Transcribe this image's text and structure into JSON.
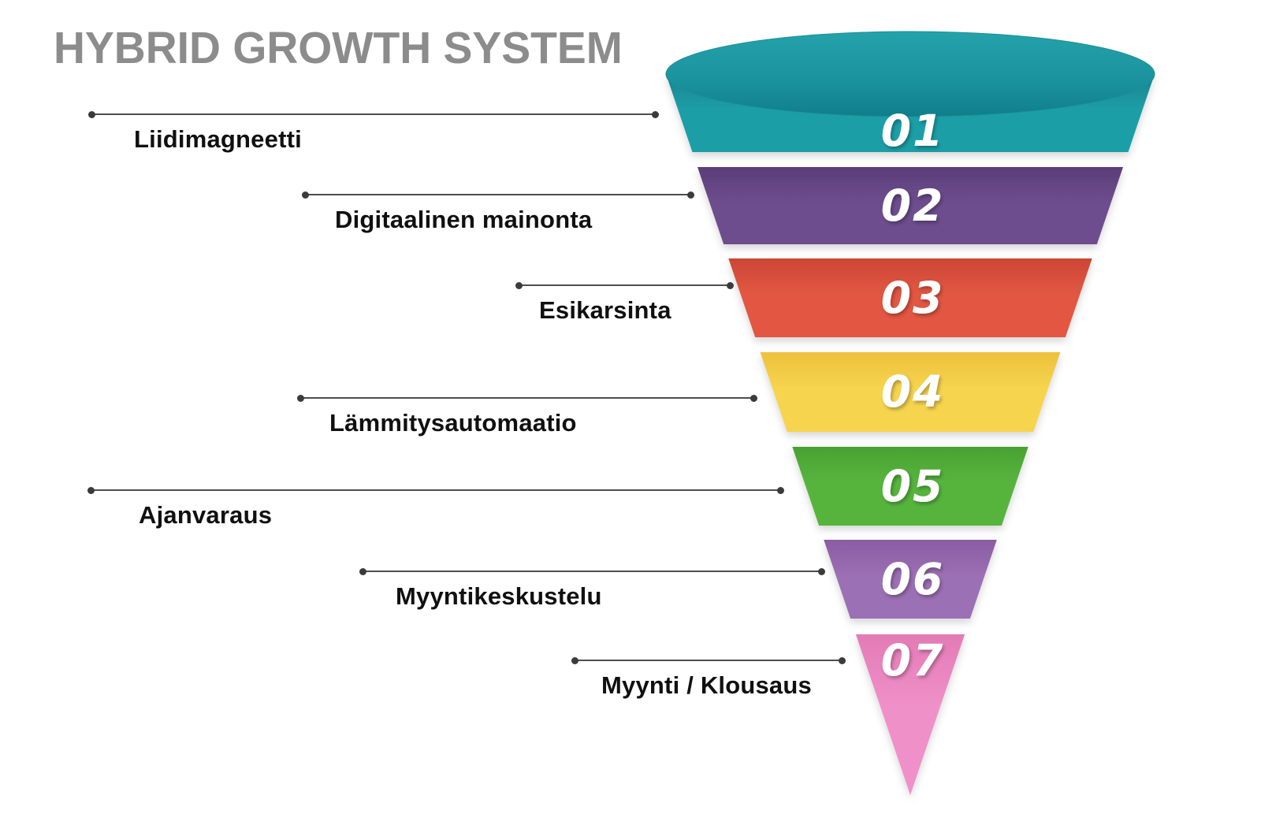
{
  "title": "HYBRID GROWTH SYSTEM",
  "colors": {
    "background": "#ffffff",
    "title_text": "#8c8c8c",
    "label_text": "#101010",
    "leader_line": "#4d4d4d",
    "leader_dot": "#3b3b3b",
    "stage_number_text": "#ffffff",
    "funnel_mouth_top": "#24a2aa",
    "funnel_mouth_bottom": "#107e8b"
  },
  "chart_data": {
    "type": "funnel",
    "title": "HYBRID GROWTH SYSTEM",
    "stages": [
      {
        "number": "01",
        "label": "Liidimagneetti",
        "color": "#1f9ea6",
        "shade": "#16838e"
      },
      {
        "number": "02",
        "label": "Digitaalinen mainonta",
        "color": "#6d4d8e",
        "shade": "#5a3d78"
      },
      {
        "number": "03",
        "label": "Esikarsinta",
        "color": "#e25742",
        "shade": "#cc4635"
      },
      {
        "number": "04",
        "label": "Lämmitysautomaatio",
        "color": "#f6d44d",
        "shade": "#edc13c"
      },
      {
        "number": "05",
        "label": "Ajanvaraus",
        "color": "#57b43d",
        "shade": "#49a233"
      },
      {
        "number": "06",
        "label": "Myyntikeskustelu",
        "color": "#9c6fb4",
        "shade": "#8a5ca3"
      },
      {
        "number": "07",
        "label": "Myynti / Klousaus",
        "color": "#f090c8",
        "shade": "#e37bb6"
      }
    ]
  }
}
